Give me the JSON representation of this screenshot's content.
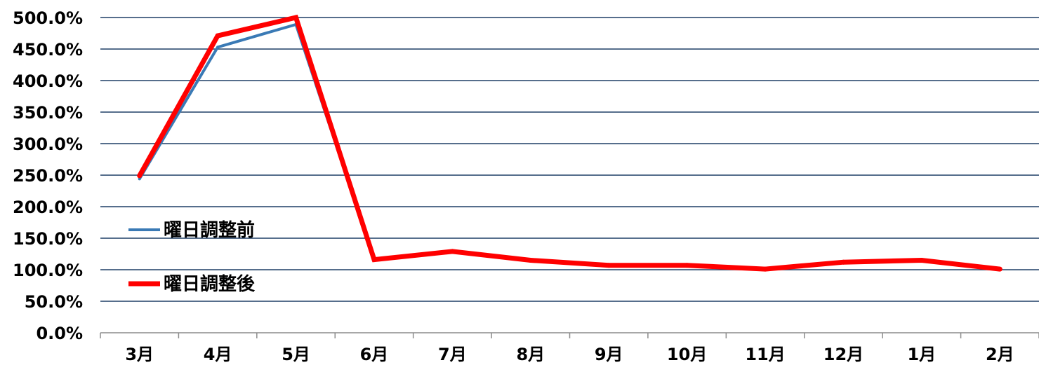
{
  "chart_data": {
    "type": "line",
    "categories": [
      "3月",
      "4月",
      "5月",
      "6月",
      "7月",
      "8月",
      "9月",
      "10月",
      "11月",
      "12月",
      "1月",
      "2月"
    ],
    "series": [
      {
        "name": "曜日調整前",
        "color": "#3a7ab5",
        "values": [
          244,
          453,
          489,
          117,
          128,
          114,
          107,
          107,
          101,
          111,
          114,
          101
        ]
      },
      {
        "name": "曜日調整後",
        "color": "#ff0000",
        "values": [
          249,
          471,
          500,
          116,
          129,
          115,
          107,
          107,
          101,
          112,
          115,
          101
        ]
      }
    ],
    "ylim": [
      0,
      500
    ],
    "yticks": [
      "0.0%",
      "50.0%",
      "100.0%",
      "150.0%",
      "200.0%",
      "250.0%",
      "300.0%",
      "350.0%",
      "400.0%",
      "450.0%",
      "500.0%"
    ],
    "grid": true,
    "gridline_color": "#1f3f66",
    "legend_position": "left, inside plot",
    "title": "",
    "xlabel": "",
    "ylabel": ""
  }
}
